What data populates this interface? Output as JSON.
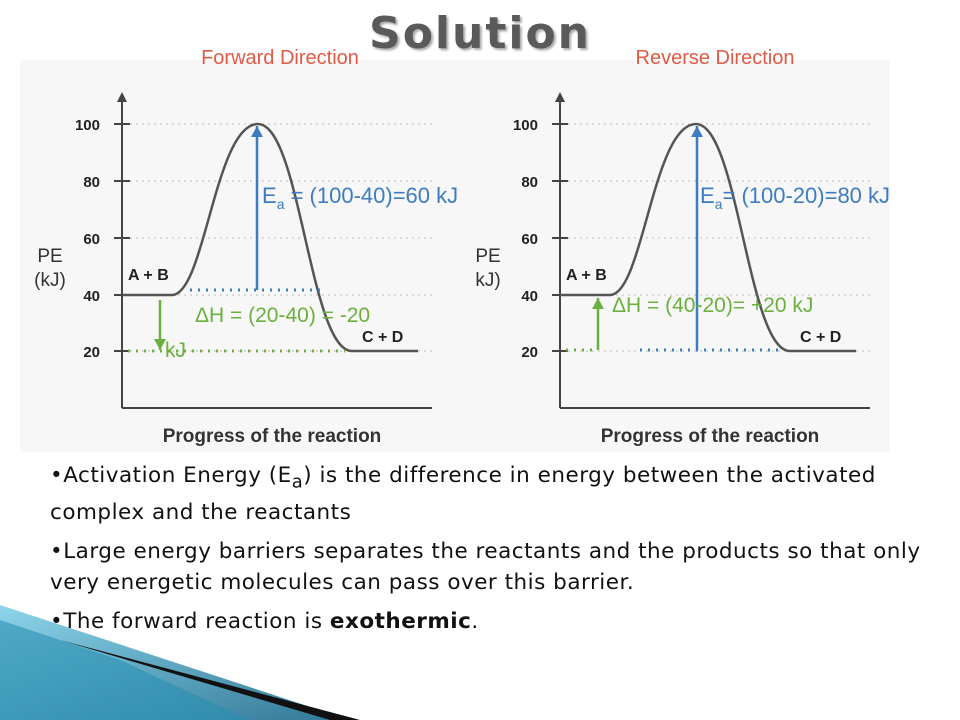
{
  "title": "Solution",
  "diagrams": [
    {
      "heading": "Forward Direction",
      "y_label": [
        "PE",
        "(kJ)"
      ],
      "yticks": [
        100,
        80,
        60,
        40,
        20
      ],
      "reactants": "A + B",
      "products": "C + D",
      "x_label": "Progress of the reaction",
      "ea": {
        "symbol": "E",
        "subscript": "a",
        "text": " = (100-40)=60 kJ"
      },
      "delta_h": [
        "ΔH = (20-40) = -20",
        "kJ"
      ]
    },
    {
      "heading": "Reverse Direction",
      "y_label": [
        "PE",
        "kJ)"
      ],
      "yticks": [
        100,
        80,
        60,
        40,
        20
      ],
      "reactants": "A + B",
      "products": "C + D",
      "x_label": "Progress of the reaction",
      "ea": {
        "symbol": "E",
        "subscript": "a",
        "text": "= (100-20)=80 kJ"
      },
      "delta_h": [
        "ΔH = (40-20)= +20 kJ"
      ]
    }
  ],
  "bullets": [
    [
      "Activation Energy (E",
      "a",
      ") is the difference in energy between the activated complex and the reactants"
    ],
    [
      "Large energy barriers separates the reactants and the products so that only very energetic molecules can pass over this barrier."
    ],
    [
      "The forward reaction is ",
      "exothermic",
      "."
    ]
  ]
}
